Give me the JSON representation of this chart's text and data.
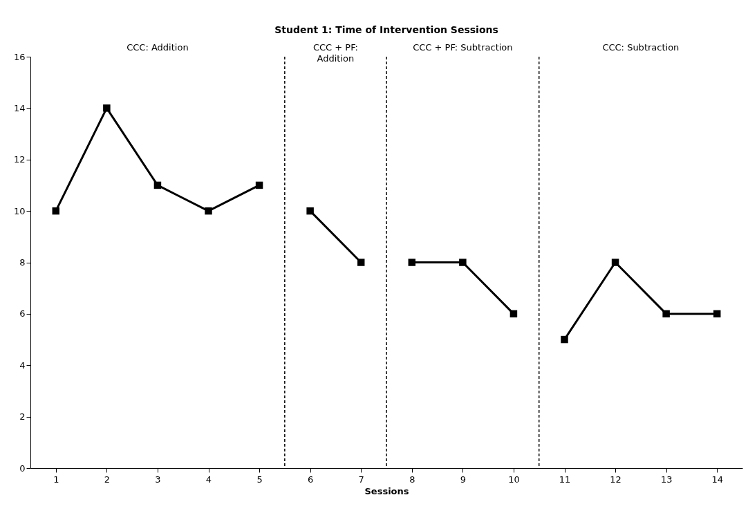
{
  "chart_data": {
    "type": "line",
    "title": "Student 1: Time of Intervention Sessions",
    "xlabel": "Sessions",
    "xlim": [
      0.5,
      14.5
    ],
    "xticks": [
      1,
      2,
      3,
      4,
      5,
      6,
      7,
      8,
      9,
      10,
      11,
      12,
      13,
      14
    ],
    "ylim": [
      0,
      16
    ],
    "yticks": [
      0,
      2,
      4,
      6,
      8,
      10,
      12,
      14,
      16
    ],
    "series": [
      {
        "color": "#000000",
        "x": [
          1,
          2,
          3,
          4,
          5
        ],
        "values": [
          10,
          14,
          11,
          10,
          11
        ]
      },
      {
        "color": "#000000",
        "x": [
          6,
          7
        ],
        "values": [
          10,
          8
        ]
      },
      {
        "color": "#000000",
        "x": [
          8,
          9,
          10
        ],
        "values": [
          8,
          8,
          6
        ]
      },
      {
        "color": "#000000",
        "x": [
          11,
          12,
          13,
          14
        ],
        "values": [
          5,
          8,
          6,
          6
        ]
      }
    ],
    "ref_lines": [
      {
        "axis": "x",
        "value": 5.5,
        "color": "#000000",
        "line_style": "dashed"
      },
      {
        "axis": "x",
        "value": 7.5,
        "color": "#000000",
        "line_style": "dashed"
      },
      {
        "axis": "x",
        "value": 10.5,
        "color": "#000000",
        "line_style": "dashed"
      }
    ],
    "annotations": [
      "CCC: Addition",
      "CCC + PF: Addition",
      "CCC + PF: Subtraction",
      "CCC: Subtraction"
    ],
    "marker": "square",
    "line_style": "solid",
    "grid": false,
    "legend": false
  }
}
